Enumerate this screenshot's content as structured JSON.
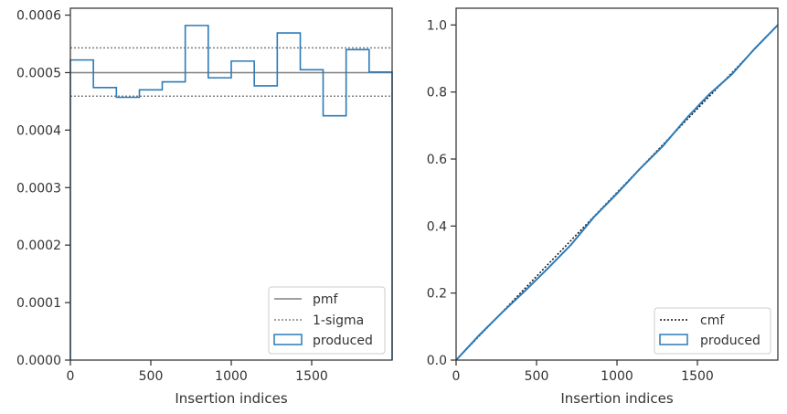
{
  "chart_data": [
    {
      "type": "line",
      "xlabel": "Insertion indices",
      "ylabel": "",
      "xlim": [
        0,
        2000
      ],
      "ylim": [
        0,
        0.000612
      ],
      "x_ticks": [
        0,
        500,
        1000,
        1500
      ],
      "x_tick_labels": [
        "0",
        "500",
        "1000",
        "1500"
      ],
      "y_ticks": [
        0,
        0.0001,
        0.0002,
        0.0003,
        0.0004,
        0.0005,
        0.0006
      ],
      "y_tick_labels": [
        "0.0000",
        "0.0001",
        "0.0002",
        "0.0003",
        "0.0004",
        "0.0005",
        "0.0006"
      ],
      "grid": false,
      "legend_position": "lower-right",
      "pmf": 0.0005,
      "sigma_upper": 0.000543,
      "sigma_lower": 0.000459,
      "histogram": {
        "bin_edges": [
          0,
          143,
          286,
          429,
          571,
          714,
          857,
          1000,
          1143,
          1286,
          1429,
          1571,
          1714,
          1857,
          2000
        ],
        "values": [
          0.000522,
          0.000474,
          0.000457,
          0.00047,
          0.000484,
          0.000582,
          0.000491,
          0.00052,
          0.000477,
          0.000569,
          0.000505,
          0.000425,
          0.00054,
          0.000501
        ]
      },
      "series": [
        {
          "name": "pmf",
          "color": "#808080",
          "style": "solid"
        },
        {
          "name": "1-sigma",
          "color": "#808080",
          "style": "dotted"
        },
        {
          "name": "produced",
          "color": "#2b7bb9",
          "style": "step"
        }
      ]
    },
    {
      "type": "line",
      "xlabel": "Insertion indices",
      "ylabel": "",
      "xlim": [
        0,
        2000
      ],
      "ylim": [
        0,
        1.05
      ],
      "x_ticks": [
        0,
        500,
        1000,
        1500
      ],
      "x_tick_labels": [
        "0",
        "500",
        "1000",
        "1500"
      ],
      "y_ticks": [
        0,
        0.2,
        0.4,
        0.6,
        0.8,
        1.0
      ],
      "y_tick_labels": [
        "0.0",
        "0.2",
        "0.4",
        "0.6",
        "0.8",
        "1.0"
      ],
      "grid": false,
      "legend_position": "lower-right",
      "cmf": {
        "x": [
          0,
          2000
        ],
        "y": [
          0,
          1.0
        ]
      },
      "produced": {
        "x": [
          0,
          143,
          286,
          429,
          571,
          714,
          857,
          1000,
          1143,
          1286,
          1429,
          1571,
          1714,
          1857,
          2000
        ],
        "y": [
          0,
          0.074,
          0.142,
          0.207,
          0.274,
          0.344,
          0.427,
          0.497,
          0.571,
          0.639,
          0.72,
          0.792,
          0.853,
          0.93,
          1.0
        ]
      },
      "series": [
        {
          "name": "cmf",
          "color": "#111111",
          "style": "dotted"
        },
        {
          "name": "produced",
          "color": "#2b7bb9",
          "style": "solid"
        }
      ]
    }
  ]
}
